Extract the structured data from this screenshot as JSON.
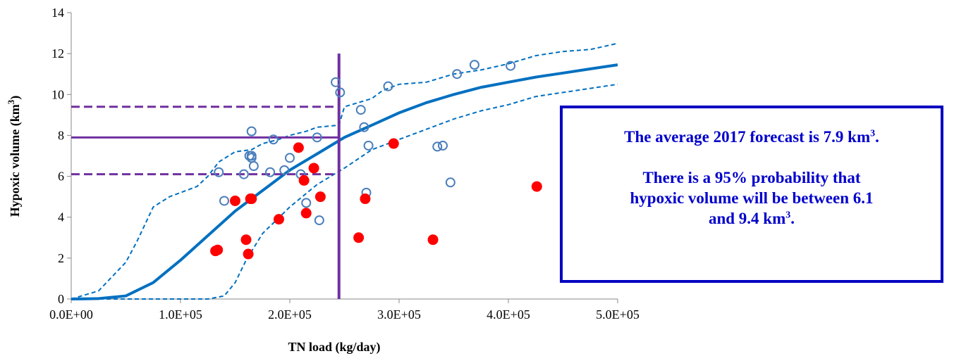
{
  "chart_data": {
    "type": "scatter",
    "xlabel": "TN load (kg/day)",
    "ylabel": "Hypoxic volume (km",
    "ylabel_sup": "3",
    "ylabel_end": ")",
    "xlim": [
      0,
      500000
    ],
    "ylim": [
      0,
      14
    ],
    "x_ticks": [
      0,
      100000,
      200000,
      300000,
      400000,
      500000
    ],
    "x_tick_labels": [
      "0.0E+00",
      "1.0E+05",
      "2.0E+05",
      "3.0E+05",
      "4.0E+05",
      "5.0E+05"
    ],
    "y_ticks": [
      0,
      2,
      4,
      6,
      8,
      10,
      12,
      14
    ],
    "y_tick_labels": [
      "0",
      "2",
      "4",
      "6",
      "8",
      "10",
      "12",
      "14"
    ],
    "grid": false,
    "colors": {
      "open_points": "#4a7ebb",
      "filled_points": "#ff0000",
      "model_curve": "#0070c0",
      "forecast_lines": "#7030a0",
      "callout_border": "#0000c0",
      "callout_text": "#0000cc"
    },
    "series": [
      {
        "marker": "open-circle",
        "x": [
          135000,
          140000,
          158000,
          165000,
          165000,
          167000,
          163000,
          165000,
          182000,
          185000,
          195000,
          200000,
          210000,
          215000,
          225000,
          227000,
          242000,
          246000,
          265000,
          268000,
          270000,
          272000,
          290000,
          335000,
          340000,
          347000,
          353000,
          369000,
          402000
        ],
        "y": [
          6.2,
          4.8,
          6.1,
          8.2,
          7.0,
          6.5,
          7.0,
          6.9,
          6.2,
          7.8,
          6.3,
          6.9,
          6.1,
          4.7,
          7.9,
          3.85,
          10.6,
          10.1,
          9.25,
          8.4,
          5.2,
          7.5,
          10.4,
          7.45,
          7.5,
          5.7,
          11.0,
          11.45,
          11.4
        ]
      },
      {
        "marker": "filled-circle",
        "x": [
          132000,
          134000,
          150000,
          160000,
          162000,
          164000,
          165000,
          190000,
          208000,
          213000,
          215000,
          222000,
          228000,
          263000,
          269000,
          295000,
          331000,
          426000
        ],
        "y": [
          2.35,
          2.4,
          4.8,
          2.9,
          2.2,
          4.9,
          4.9,
          3.9,
          7.4,
          5.8,
          4.2,
          6.4,
          5.0,
          3.0,
          4.9,
          7.6,
          2.9,
          5.5
        ]
      },
      {
        "type": "line",
        "style": "solid",
        "x": [
          0,
          25000,
          50000,
          75000,
          100000,
          125000,
          150000,
          175000,
          200000,
          225000,
          250000,
          275000,
          300000,
          325000,
          350000,
          375000,
          400000,
          425000,
          450000,
          475000,
          500000
        ],
        "y": [
          0.0,
          0.02,
          0.15,
          0.8,
          1.9,
          3.1,
          4.3,
          5.3,
          6.3,
          7.1,
          7.9,
          8.5,
          9.1,
          9.6,
          10.0,
          10.35,
          10.6,
          10.85,
          11.05,
          11.25,
          11.45
        ]
      },
      {
        "type": "line",
        "style": "dashed",
        "x": [
          0,
          25000,
          50000,
          60000,
          75000,
          90000,
          100000,
          115000,
          125000,
          135000,
          150000,
          165000,
          175000,
          190000,
          200000,
          215000,
          225000,
          245000,
          250000,
          275000,
          285000,
          300000,
          325000,
          350000,
          375000,
          400000,
          425000,
          450000,
          475000,
          500000
        ],
        "y": [
          0.0,
          0.4,
          1.8,
          2.8,
          4.5,
          5.0,
          5.2,
          5.5,
          6.0,
          6.7,
          7.2,
          7.3,
          7.6,
          7.8,
          8.0,
          8.2,
          8.4,
          8.5,
          9.4,
          9.8,
          10.2,
          10.5,
          10.6,
          11.0,
          11.2,
          11.5,
          11.9,
          12.1,
          12.2,
          12.5
        ]
      },
      {
        "type": "line",
        "style": "dashed",
        "x": [
          0,
          125000,
          140000,
          150000,
          160000,
          175000,
          200000,
          225000,
          250000,
          275000,
          300000,
          325000,
          350000,
          375000,
          400000,
          425000,
          450000,
          475000,
          500000
        ],
        "y": [
          0.0,
          0.0,
          0.15,
          0.8,
          1.9,
          3.2,
          4.5,
          5.6,
          6.4,
          7.3,
          7.8,
          8.3,
          8.8,
          9.2,
          9.5,
          9.9,
          10.1,
          10.3,
          10.5
        ]
      }
    ],
    "forecast": {
      "x": 245000,
      "mean": 7.9,
      "lower": 6.1,
      "upper": 9.4,
      "vline_top": 12.0
    }
  },
  "callout": {
    "line1": "The average 2017 forecast is 7.9 km",
    "line1_sup": "3",
    "line1_end": ".",
    "line2": "There is a 95% probability that",
    "line3": "hypoxic volume will be between 6.1",
    "line4": "and 9.4 km",
    "line4_sup": "3",
    "line4_end": "."
  }
}
